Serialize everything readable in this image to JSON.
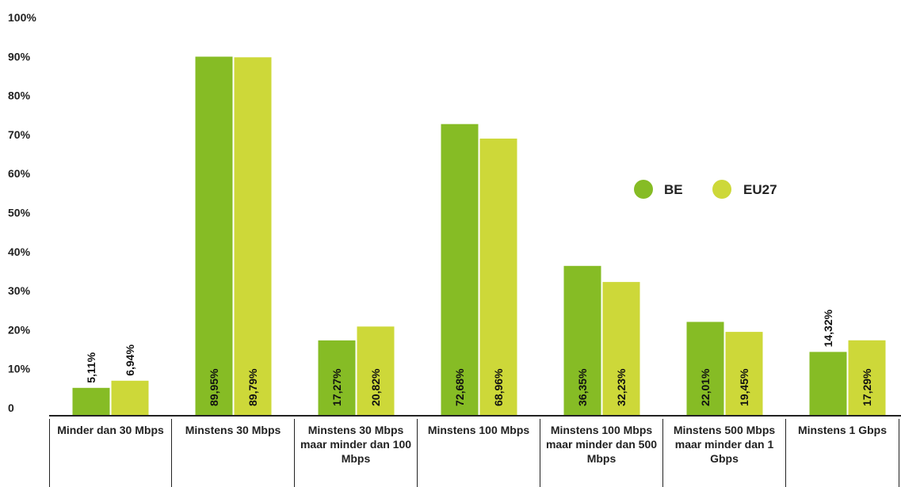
{
  "chart_data": {
    "type": "bar",
    "categories": [
      "Minder dan 30 Mbps",
      "Minstens 30 Mbps",
      "Minstens 30 Mbps maar minder dan 100 Mbps",
      "Minstens 100 Mbps",
      "Minstens 100 Mbps maar minder dan 500 Mbps",
      "Minstens 500 Mbps maar minder dan 1 Gbps",
      "Minstens 1 Gbps"
    ],
    "series": [
      {
        "name": "BE",
        "color": "#86bc25",
        "values": [
          5.11,
          89.95,
          17.27,
          72.68,
          36.35,
          22.01,
          14.32
        ],
        "labels": [
          "5,11%",
          "89,95%",
          "17,27%",
          "72,68%",
          "36,35%",
          "22,01%",
          "14,32%"
        ]
      },
      {
        "name": "EU27",
        "color": "#cdd839",
        "values": [
          6.94,
          89.79,
          20.82,
          68.96,
          32.23,
          19.45,
          17.29
        ],
        "labels": [
          "6,94%",
          "89,79%",
          "20,82%",
          "68,96%",
          "32,23%",
          "19,45%",
          "17,29%"
        ]
      }
    ],
    "yticks": [
      "0",
      "10%",
      "20%",
      "30%",
      "40%",
      "50%",
      "60%",
      "70%",
      "80%",
      "90%",
      "100%"
    ],
    "ylim": [
      0,
      100
    ],
    "legend_position": "right",
    "grid": false
  }
}
